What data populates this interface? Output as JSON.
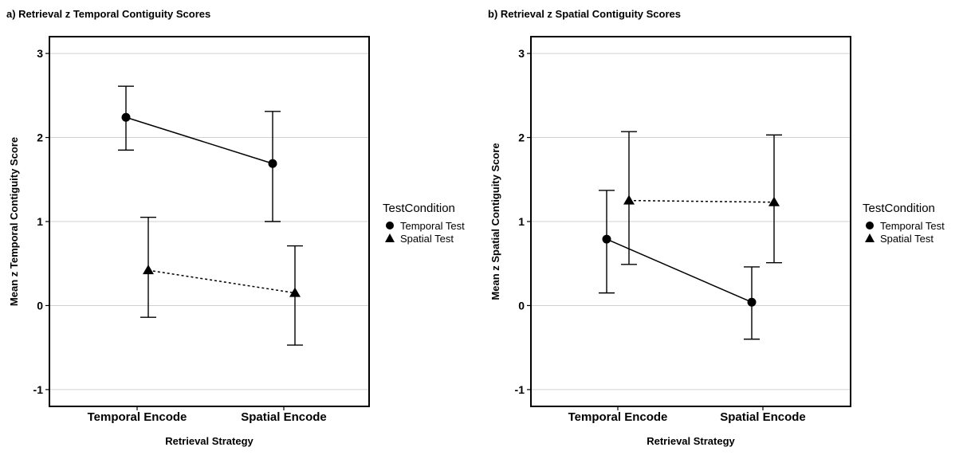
{
  "chart_data": [
    {
      "type": "line",
      "title": "a) Retrieval z Temporal Contiguity Scores",
      "xlabel": "Retrieval Strategy",
      "ylabel": "Mean z Temporal Contiguity Score",
      "categories": [
        "Temporal Encode",
        "Spatial Encode"
      ],
      "ylim": [
        -1.2,
        3.2
      ],
      "yticks": [
        "-1",
        "0",
        "1",
        "2",
        "3"
      ],
      "grid": true,
      "legend": {
        "title": "TestCondition",
        "placement": "right"
      },
      "series": [
        {
          "name": "Temporal Test",
          "marker": "circle",
          "linestyle": "solid",
          "values": [
            2.24,
            1.69
          ],
          "lower": [
            1.85,
            1.0
          ],
          "upper": [
            2.61,
            2.31
          ]
        },
        {
          "name": "Spatial Test",
          "marker": "triangle",
          "linestyle": "dotted",
          "values": [
            0.42,
            0.15
          ],
          "lower": [
            -0.14,
            -0.47
          ],
          "upper": [
            1.05,
            0.71
          ]
        }
      ]
    },
    {
      "type": "line",
      "title": "b) Retrieval z Spatial Contiguity Scores",
      "xlabel": "Retrieval Strategy",
      "ylabel": "Mean z Spatial Contiguity Score",
      "categories": [
        "Temporal Encode",
        "Spatial Encode"
      ],
      "ylim": [
        -1.2,
        3.2
      ],
      "yticks": [
        "-1",
        "0",
        "1",
        "2",
        "3"
      ],
      "grid": true,
      "legend": {
        "title": "TestCondition",
        "placement": "right"
      },
      "series": [
        {
          "name": "Temporal Test",
          "marker": "circle",
          "linestyle": "solid",
          "values": [
            0.79,
            0.04
          ],
          "lower": [
            0.15,
            -0.4
          ],
          "upper": [
            1.37,
            0.46
          ]
        },
        {
          "name": "Spatial Test",
          "marker": "triangle",
          "linestyle": "dotted",
          "values": [
            1.25,
            1.23
          ],
          "lower": [
            0.49,
            0.51
          ],
          "upper": [
            2.07,
            2.03
          ]
        }
      ]
    }
  ]
}
